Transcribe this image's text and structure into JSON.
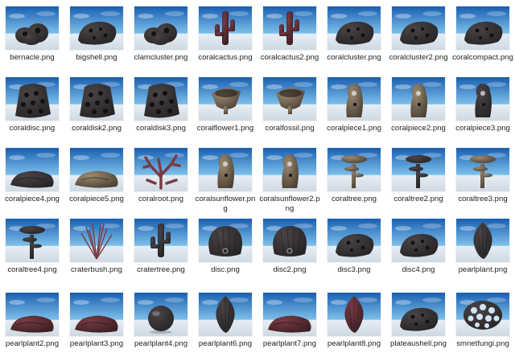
{
  "colors": {
    "sky_top": "#1a5fb0",
    "sky_bottom": "#7ec0ea",
    "ground": "#e6eef5",
    "object_dark": "#2c2a2c",
    "object_mid": "#4a4344",
    "label_text": "#222222"
  },
  "files": [
    {
      "name": "bernacle.png",
      "icon": "barnacle-cluster-thumbnail",
      "shape": "cluster",
      "tone": "dark"
    },
    {
      "name": "bigshell.png",
      "icon": "big-shell-thumbnail",
      "shape": "rock",
      "tone": "dark"
    },
    {
      "name": "clamcluster.png",
      "icon": "clam-cluster-thumbnail",
      "shape": "cluster",
      "tone": "dark"
    },
    {
      "name": "coralcactus.png",
      "icon": "coral-cactus-thumbnail",
      "shape": "cactus",
      "tone": "red"
    },
    {
      "name": "coralcactus2.png",
      "icon": "coral-cactus-thumbnail",
      "shape": "cactus",
      "tone": "red"
    },
    {
      "name": "coralcluster.png",
      "icon": "coral-cluster-thumbnail",
      "shape": "rock",
      "tone": "dark"
    },
    {
      "name": "coralcluster2.png",
      "icon": "coral-cluster-thumbnail",
      "shape": "rock",
      "tone": "dark"
    },
    {
      "name": "coralcompact.png",
      "icon": "coral-compact-thumbnail",
      "shape": "rock",
      "tone": "dark"
    },
    {
      "name": "coraldisc.png",
      "icon": "coral-disc-thumbnail",
      "shape": "disc",
      "tone": "dark"
    },
    {
      "name": "coraldisk2.png",
      "icon": "coral-disk-thumbnail",
      "shape": "disc",
      "tone": "dark"
    },
    {
      "name": "coraldisk3.png",
      "icon": "coral-disk-thumbnail",
      "shape": "disc",
      "tone": "dark"
    },
    {
      "name": "coralflower1.png",
      "icon": "coral-flower-thumbnail",
      "shape": "flower",
      "tone": "tan"
    },
    {
      "name": "coralfossil.png",
      "icon": "coral-fossil-thumbnail",
      "shape": "flower",
      "tone": "tan"
    },
    {
      "name": "coralpiece1.png",
      "icon": "coral-piece-thumbnail",
      "shape": "pillar",
      "tone": "tan"
    },
    {
      "name": "coralpiece2.png",
      "icon": "coral-piece-thumbnail",
      "shape": "pillar",
      "tone": "tan"
    },
    {
      "name": "coralpiece3.png",
      "icon": "coral-piece-thumbnail",
      "shape": "pillar",
      "tone": "dark"
    },
    {
      "name": "coralpiece4.png",
      "icon": "coral-piece-thumbnail",
      "shape": "low",
      "tone": "dark"
    },
    {
      "name": "coralpiece5.png",
      "icon": "coral-piece-thumbnail",
      "shape": "low",
      "tone": "tan"
    },
    {
      "name": "coralroot.png",
      "icon": "coral-root-thumbnail",
      "shape": "branch",
      "tone": "red"
    },
    {
      "name": "coralsunflower.png",
      "icon": "coral-sunflower-thumbnail",
      "shape": "pillar",
      "tone": "tan"
    },
    {
      "name": "coralsunflower2.png",
      "icon": "coral-sunflower-thumbnail",
      "shape": "pillar",
      "tone": "tan"
    },
    {
      "name": "coraltree.png",
      "icon": "coral-tree-thumbnail",
      "shape": "tree",
      "tone": "tan"
    },
    {
      "name": "coraltree2.png",
      "icon": "coral-tree-thumbnail",
      "shape": "tree",
      "tone": "dark"
    },
    {
      "name": "coraltree3.png",
      "icon": "coral-tree-thumbnail",
      "shape": "tree",
      "tone": "tan"
    },
    {
      "name": "coraltree4.png",
      "icon": "coral-tree-thumbnail",
      "shape": "tree",
      "tone": "dark"
    },
    {
      "name": "craterbush.png",
      "icon": "crater-bush-thumbnail",
      "shape": "bush",
      "tone": "red"
    },
    {
      "name": "cratertree.png",
      "icon": "crater-tree-thumbnail",
      "shape": "cactus",
      "tone": "dark"
    },
    {
      "name": "disc.png",
      "icon": "disc-thumbnail",
      "shape": "shell",
      "tone": "dark"
    },
    {
      "name": "disc2.png",
      "icon": "disc-thumbnail",
      "shape": "shell",
      "tone": "dark"
    },
    {
      "name": "disc3.png",
      "icon": "disc-thumbnail",
      "shape": "rock",
      "tone": "dark"
    },
    {
      "name": "disc4.png",
      "icon": "disc-thumbnail",
      "shape": "rock",
      "tone": "dark"
    },
    {
      "name": "pearlplant.png",
      "icon": "pearl-plant-thumbnail",
      "shape": "bulb",
      "tone": "dark"
    },
    {
      "name": "pearlplant2.png",
      "icon": "pearl-plant-thumbnail",
      "shape": "low",
      "tone": "red"
    },
    {
      "name": "pearlplant3.png",
      "icon": "pearl-plant-thumbnail",
      "shape": "low",
      "tone": "red"
    },
    {
      "name": "pearlplant4.png",
      "icon": "pearl-plant-thumbnail",
      "shape": "sphere",
      "tone": "dark"
    },
    {
      "name": "pearlplant6.png",
      "icon": "pearl-plant-thumbnail",
      "shape": "bulb",
      "tone": "dark"
    },
    {
      "name": "pearlplant7.png",
      "icon": "pearl-plant-thumbnail",
      "shape": "low",
      "tone": "red"
    },
    {
      "name": "pearlplant8.png",
      "icon": "pearl-plant-thumbnail",
      "shape": "bulb",
      "tone": "red"
    },
    {
      "name": "plateaushell.png",
      "icon": "plateau-shell-thumbnail",
      "shape": "rock",
      "tone": "dark"
    },
    {
      "name": "smnetfungi.png",
      "icon": "net-fungi-thumbnail",
      "shape": "netball",
      "tone": "dark"
    }
  ]
}
